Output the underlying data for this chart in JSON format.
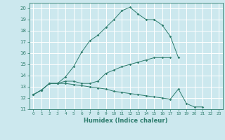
{
  "xlabel": "Humidex (Indice chaleur)",
  "bg_color": "#cce8ee",
  "grid_color": "#ffffff",
  "line_color": "#2e7d6e",
  "x": [
    0,
    1,
    2,
    3,
    4,
    5,
    6,
    7,
    8,
    9,
    10,
    11,
    12,
    13,
    14,
    15,
    16,
    17,
    18,
    19,
    20,
    21,
    22,
    23
  ],
  "line1": [
    12.3,
    12.7,
    13.3,
    13.3,
    13.9,
    14.8,
    16.1,
    17.1,
    17.6,
    18.3,
    19.0,
    19.8,
    20.1,
    19.5,
    19.0,
    19.0,
    18.5,
    17.5,
    15.6,
    null,
    null,
    null,
    null,
    null
  ],
  "line2": [
    12.3,
    12.7,
    13.3,
    13.3,
    13.5,
    13.5,
    13.3,
    13.3,
    13.5,
    14.2,
    14.5,
    14.8,
    15.0,
    15.2,
    15.4,
    15.6,
    15.6,
    15.6,
    null,
    null,
    null,
    null,
    null,
    null
  ],
  "line3": [
    12.3,
    12.7,
    13.3,
    13.3,
    13.3,
    13.2,
    13.1,
    13.0,
    12.9,
    12.8,
    12.6,
    12.5,
    12.4,
    12.3,
    12.2,
    12.1,
    12.0,
    11.9,
    12.8,
    11.5,
    11.2,
    11.2,
    null,
    null
  ],
  "xlim": [
    -0.5,
    23.5
  ],
  "ylim": [
    11,
    20.5
  ],
  "yticks": [
    11,
    12,
    13,
    14,
    15,
    16,
    17,
    18,
    19,
    20
  ],
  "xticks": [
    0,
    1,
    2,
    3,
    4,
    5,
    6,
    7,
    8,
    9,
    10,
    11,
    12,
    13,
    14,
    15,
    16,
    17,
    18,
    19,
    20,
    21,
    22,
    23
  ]
}
